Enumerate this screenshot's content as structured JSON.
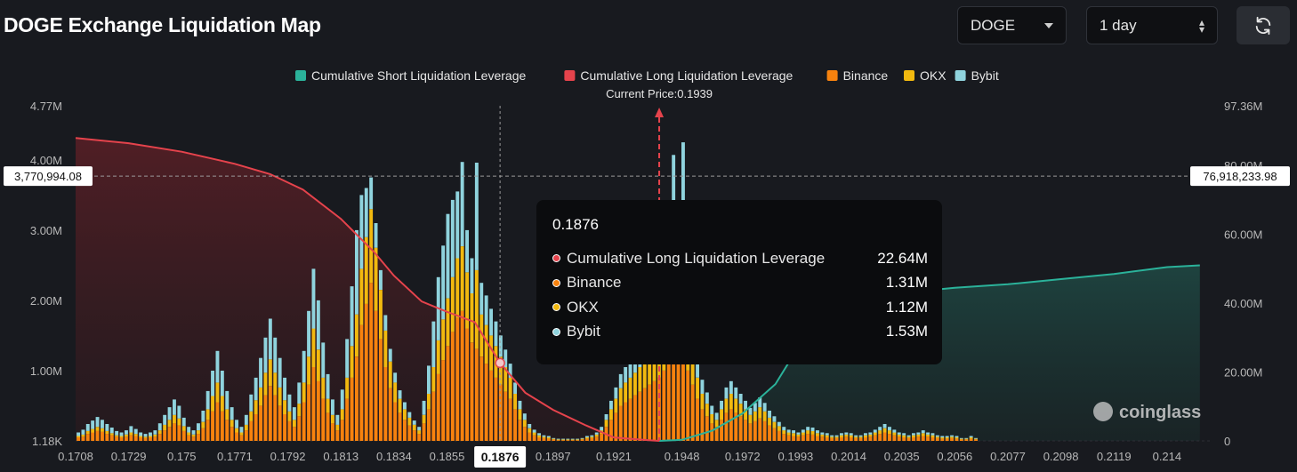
{
  "header": {
    "title": "DOGE Exchange Liquidation Map",
    "coin_select": "DOGE",
    "range_select": "1 day"
  },
  "colors": {
    "short_line": "#2bb29a",
    "long_line": "#e5434c",
    "binance": "#f7820e",
    "okx": "#f2b90f",
    "bybit": "#8fd3dd",
    "background": "#181a1f"
  },
  "chart_data": {
    "type": "bar",
    "legend": [
      {
        "name": "Cumulative Short Liquidation Leverage",
        "color": "#2bb29a"
      },
      {
        "name": "Cumulative Long Liquidation Leverage",
        "color": "#e5434c"
      },
      {
        "name": "Binance",
        "color": "#f7820e"
      },
      {
        "name": "OKX",
        "color": "#f2b90f"
      },
      {
        "name": "Bybit",
        "color": "#8fd3dd"
      }
    ],
    "legend_position": "top-center",
    "current_price_label": "Current Price:0.1939",
    "current_price": 0.1939,
    "x_ticks": [
      "0.1708",
      "0.1729",
      "0.175",
      "0.1771",
      "0.1792",
      "0.1813",
      "0.1834",
      "0.1855",
      "0.1876",
      "0.1897",
      "0.1921",
      "0.1948",
      "0.1972",
      "0.1993",
      "0.2014",
      "0.2035",
      "0.2056",
      "0.2077",
      "0.2098",
      "0.2119",
      "0.214"
    ],
    "x_range": [
      0.1708,
      0.2158
    ],
    "left_axis_ticks": [
      "4.77M",
      "4.00M",
      "3.00M",
      "2.00M",
      "1.00M",
      "1.18K"
    ],
    "left_axis_values": [
      4770000,
      4000000,
      3000000,
      2000000,
      1000000,
      1180
    ],
    "right_axis_ticks": [
      "97.36M",
      "80.00M",
      "60.00M",
      "40.00M",
      "20.00M",
      "0"
    ],
    "right_axis_values": [
      97360000,
      80000000,
      60000000,
      40000000,
      20000000,
      0
    ],
    "crosshair": {
      "x_label": "0.1876",
      "left_value_label": "3,770,994.08",
      "left_value": 3770994.08,
      "right_value_label": "76,918,233.98",
      "right_value": 76918233.98
    },
    "long_cumulative_points": [
      [
        0.1708,
        88.0
      ],
      [
        0.1729,
        86.5
      ],
      [
        0.175,
        84.0
      ],
      [
        0.1771,
        80.5
      ],
      [
        0.1785,
        77.5
      ],
      [
        0.1798,
        73.0
      ],
      [
        0.1813,
        64.5
      ],
      [
        0.1826,
        55.0
      ],
      [
        0.1834,
        48.0
      ],
      [
        0.1845,
        40.5
      ],
      [
        0.1855,
        37.5
      ],
      [
        0.1866,
        34.5
      ],
      [
        0.1876,
        22.64
      ],
      [
        0.1886,
        14.0
      ],
      [
        0.1897,
        9.0
      ],
      [
        0.191,
        4.5
      ],
      [
        0.1921,
        1.0
      ],
      [
        0.1935,
        0.2
      ],
      [
        0.1939,
        0.0
      ]
    ],
    "short_cumulative_points": [
      [
        0.1939,
        0.0
      ],
      [
        0.1948,
        0.3
      ],
      [
        0.196,
        3.0
      ],
      [
        0.1972,
        8.0
      ],
      [
        0.1985,
        16.5
      ],
      [
        0.1993,
        26.0
      ],
      [
        0.2003,
        32.0
      ],
      [
        0.2014,
        37.0
      ],
      [
        0.2025,
        41.5
      ],
      [
        0.2035,
        43.0
      ],
      [
        0.2056,
        44.5
      ],
      [
        0.2077,
        45.5
      ],
      [
        0.2098,
        47.0
      ],
      [
        0.2119,
        48.5
      ],
      [
        0.214,
        50.5
      ],
      [
        0.2153,
        51.0
      ]
    ],
    "bars": {
      "bin_start": 0.1708,
      "bin_width": 0.00019,
      "binance_M": [
        0.05,
        0.06,
        0.1,
        0.12,
        0.14,
        0.13,
        0.1,
        0.08,
        0.06,
        0.05,
        0.06,
        0.08,
        0.07,
        0.05,
        0.04,
        0.05,
        0.06,
        0.1,
        0.15,
        0.2,
        0.25,
        0.22,
        0.14,
        0.08,
        0.06,
        0.1,
        0.18,
        0.3,
        0.42,
        0.55,
        0.42,
        0.3,
        0.2,
        0.12,
        0.08,
        0.15,
        0.28,
        0.38,
        0.5,
        0.65,
        0.78,
        0.65,
        0.5,
        0.38,
        0.28,
        0.2,
        0.35,
        0.55,
        0.8,
        1.05,
        0.85,
        0.6,
        0.4,
        0.25,
        0.15,
        0.3,
        0.6,
        0.9,
        1.2,
        1.65,
        1.95,
        2.25,
        1.85,
        1.45,
        1.05,
        0.75,
        0.55,
        0.4,
        0.3,
        0.22,
        0.15,
        0.1,
        0.25,
        0.45,
        0.7,
        0.95,
        1.15,
        1.35,
        1.55,
        1.75,
        1.85,
        1.6,
        1.4,
        1.31,
        1.2,
        1.1,
        1.0,
        0.9,
        0.8,
        0.7,
        0.6,
        0.45,
        0.3,
        0.2,
        0.12,
        0.08,
        0.05,
        0.04,
        0.03,
        0.02,
        0.01,
        0.01,
        0.01,
        0.01,
        0.01,
        0.02,
        0.03,
        0.04,
        0.06,
        0.1,
        0.2,
        0.3,
        0.4,
        0.5,
        0.55,
        0.6,
        0.65,
        0.7,
        0.75,
        0.8,
        0.85,
        0.9,
        1.0,
        1.15,
        1.25,
        1.3,
        1.2,
        1.0,
        0.8,
        0.6,
        0.45,
        0.35,
        0.25,
        0.2,
        0.3,
        0.4,
        0.45,
        0.4,
        0.35,
        0.3,
        0.25,
        0.28,
        0.32,
        0.28,
        0.22,
        0.18,
        0.14,
        0.1,
        0.08,
        0.07,
        0.06,
        0.08,
        0.1,
        0.09,
        0.07,
        0.06,
        0.05,
        0.04,
        0.04,
        0.05,
        0.06,
        0.05,
        0.04,
        0.04,
        0.05,
        0.06,
        0.08,
        0.1,
        0.12,
        0.1,
        0.08,
        0.06,
        0.05,
        0.04,
        0.05,
        0.06,
        0.07,
        0.06,
        0.05,
        0.04,
        0.03,
        0.03,
        0.04,
        0.03,
        0.02,
        0.02,
        0.03,
        0.02
      ],
      "okx_M": [
        0.02,
        0.03,
        0.04,
        0.05,
        0.06,
        0.05,
        0.04,
        0.03,
        0.02,
        0.02,
        0.03,
        0.04,
        0.03,
        0.02,
        0.02,
        0.02,
        0.03,
        0.05,
        0.08,
        0.1,
        0.12,
        0.1,
        0.07,
        0.04,
        0.03,
        0.05,
        0.09,
        0.15,
        0.22,
        0.28,
        0.22,
        0.15,
        0.1,
        0.06,
        0.04,
        0.08,
        0.14,
        0.2,
        0.26,
        0.32,
        0.38,
        0.32,
        0.26,
        0.2,
        0.14,
        0.1,
        0.18,
        0.28,
        0.4,
        0.55,
        0.45,
        0.3,
        0.2,
        0.12,
        0.08,
        0.15,
        0.3,
        0.45,
        0.6,
        0.8,
        0.95,
        1.05,
        0.9,
        0.7,
        0.52,
        0.38,
        0.28,
        0.2,
        0.15,
        0.11,
        0.08,
        0.05,
        0.12,
        0.22,
        0.35,
        0.48,
        0.58,
        0.68,
        0.78,
        0.85,
        0.92,
        0.8,
        0.7,
        1.12,
        0.6,
        0.55,
        0.5,
        0.45,
        0.4,
        0.35,
        0.3,
        0.22,
        0.15,
        0.1,
        0.06,
        0.04,
        0.03,
        0.02,
        0.02,
        0.01,
        0.01,
        0.01,
        0.01,
        0.01,
        0.01,
        0.01,
        0.02,
        0.02,
        0.03,
        0.05,
        0.1,
        0.15,
        0.2,
        0.25,
        0.28,
        0.3,
        0.32,
        0.35,
        0.38,
        0.4,
        0.42,
        0.45,
        0.5,
        0.58,
        0.62,
        0.65,
        0.6,
        0.5,
        0.4,
        0.3,
        0.22,
        0.18,
        0.13,
        0.1,
        0.15,
        0.2,
        0.22,
        0.2,
        0.18,
        0.15,
        0.12,
        0.14,
        0.16,
        0.14,
        0.11,
        0.09,
        0.07,
        0.05,
        0.04,
        0.04,
        0.03,
        0.04,
        0.05,
        0.05,
        0.04,
        0.03,
        0.03,
        0.02,
        0.02,
        0.03,
        0.03,
        0.03,
        0.02,
        0.02,
        0.03,
        0.03,
        0.04,
        0.05,
        0.06,
        0.05,
        0.04,
        0.03,
        0.03,
        0.02,
        0.03,
        0.03,
        0.04,
        0.03,
        0.03,
        0.02,
        0.02,
        0.02,
        0.02,
        0.02,
        0.01,
        0.01,
        0.02,
        0.01
      ],
      "bybit_M": [
        0.05,
        0.07,
        0.1,
        0.12,
        0.14,
        0.12,
        0.1,
        0.08,
        0.06,
        0.05,
        0.06,
        0.09,
        0.07,
        0.05,
        0.04,
        0.05,
        0.06,
        0.1,
        0.14,
        0.18,
        0.22,
        0.18,
        0.12,
        0.08,
        0.06,
        0.1,
        0.16,
        0.26,
        0.36,
        0.45,
        0.36,
        0.26,
        0.18,
        0.12,
        0.08,
        0.14,
        0.24,
        0.32,
        0.42,
        0.5,
        0.58,
        0.5,
        0.42,
        0.32,
        0.24,
        0.18,
        0.3,
        0.45,
        0.65,
        0.85,
        0.7,
        0.5,
        0.35,
        0.22,
        0.14,
        0.28,
        0.55,
        0.85,
        1.2,
        1.05,
        0.7,
        0.45,
        0.35,
        0.28,
        0.22,
        0.18,
        0.14,
        0.12,
        0.1,
        0.08,
        0.06,
        0.05,
        0.2,
        0.4,
        0.65,
        0.9,
        1.05,
        1.2,
        1.1,
        0.95,
        1.2,
        0.6,
        0.5,
        1.53,
        0.45,
        0.42,
        0.38,
        0.35,
        0.3,
        0.25,
        0.2,
        0.16,
        0.12,
        0.09,
        0.06,
        0.04,
        0.03,
        0.02,
        0.02,
        0.01,
        0.01,
        0.01,
        0.01,
        0.01,
        0.01,
        0.01,
        0.02,
        0.02,
        0.03,
        0.05,
        0.08,
        0.12,
        0.16,
        0.2,
        0.22,
        0.24,
        0.26,
        0.28,
        0.3,
        0.32,
        0.34,
        0.36,
        0.4,
        0.46,
        2.2,
        0.52,
        2.45,
        0.42,
        0.34,
        0.26,
        0.2,
        0.16,
        0.12,
        0.1,
        0.12,
        0.16,
        0.18,
        0.16,
        0.14,
        0.12,
        0.1,
        0.12,
        0.14,
        0.12,
        0.1,
        0.08,
        0.06,
        0.05,
        0.04,
        0.04,
        0.03,
        0.04,
        0.05,
        0.05,
        0.04,
        0.03,
        0.03,
        0.02,
        0.02,
        0.03,
        0.03,
        0.03,
        0.02,
        0.02,
        0.03,
        0.03,
        0.04,
        0.05,
        0.06,
        0.05,
        0.04,
        0.03,
        0.03,
        0.02,
        0.03,
        0.03,
        0.04,
        0.03,
        0.03,
        0.02,
        0.02,
        0.02,
        0.02,
        0.02,
        0.01,
        0.01,
        0.02,
        0.01
      ]
    }
  },
  "tooltip": {
    "title": "0.1876",
    "rows": [
      {
        "label": "Cumulative Long Liquidation Leverage",
        "value": "22.64M",
        "color": "#e5434c"
      },
      {
        "label": "Binance",
        "value": "1.31M",
        "color": "#f7820e"
      },
      {
        "label": "OKX",
        "value": "1.12M",
        "color": "#f2b90f"
      },
      {
        "label": "Bybit",
        "value": "1.53M",
        "color": "#8fd3dd"
      }
    ]
  },
  "watermark": "coinglass"
}
